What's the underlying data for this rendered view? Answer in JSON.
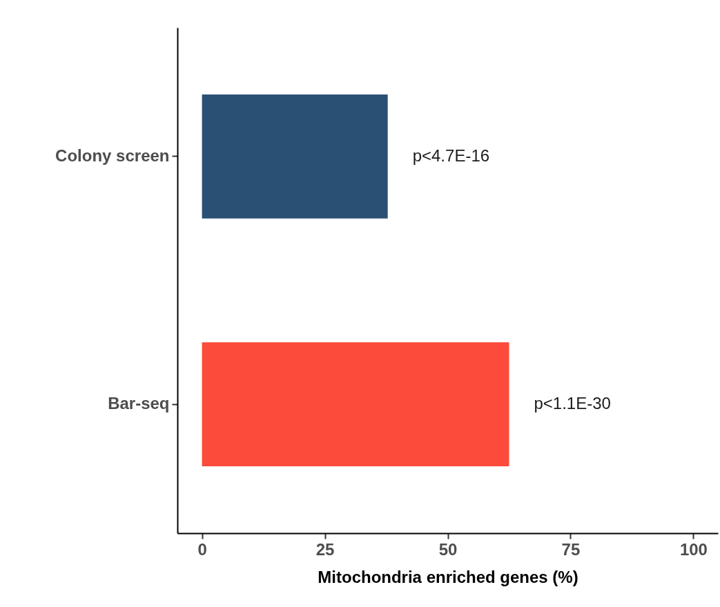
{
  "chart_data": {
    "type": "bar",
    "orientation": "horizontal",
    "categories": [
      "Colony screen",
      "Bar-seq"
    ],
    "values": [
      37.8,
      62.5
    ],
    "colors": [
      "#2a5074",
      "#fc4b3a"
    ],
    "xlabel": "Mitochondria enriched genes (%)",
    "xlim": [
      -5,
      105
    ],
    "xticks": [
      0,
      25,
      50,
      75,
      100
    ],
    "grid": false,
    "legend": false,
    "annotations": [
      "p<4.7E-16",
      "p<1.1E-30"
    ]
  }
}
